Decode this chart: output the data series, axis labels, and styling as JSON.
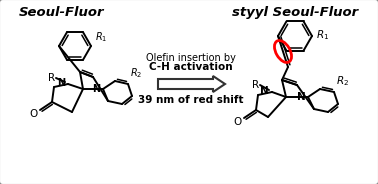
{
  "title_left": "Seoul-Fluor",
  "title_right": "styyl Seoul-Fluor",
  "arrow_text_line1": "Olefin insertion by",
  "arrow_text_line2": "C-H activation",
  "arrow_text_line3": "39 nm of red shift",
  "background_color": "#ffffff",
  "border_color": "#888888",
  "text_color": "#000000",
  "arrow_color": "#333333",
  "red_circle_color": "#ff0000",
  "fig_width": 3.78,
  "fig_height": 1.84,
  "dpi": 100
}
